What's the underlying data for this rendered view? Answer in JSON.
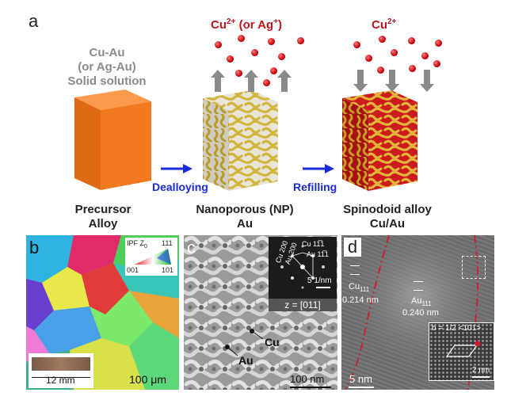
{
  "panel_a": {
    "letter": "a",
    "precursor_title": [
      "Cu-Au",
      "(or Ag-Au)",
      "Solid solution"
    ],
    "ion_left": {
      "base": "Cu",
      "sup": "2+",
      "rest": " (or Ag",
      "sup2": "+",
      "end": ")"
    },
    "ion_right": {
      "base": "Cu",
      "sup": "2+"
    },
    "step1": "Dealloying",
    "step2": "Refilling",
    "stage1": [
      "Precursor",
      "Alloy"
    ],
    "stage2": [
      "Nanoporous (NP)",
      "Au"
    ],
    "stage3": [
      "Spinodoid alloy",
      "Cu/Au"
    ],
    "colors": {
      "precursor": "#f47a22",
      "gold": "#d7b43a",
      "red": "#cc1b1b",
      "arrow_blue": "#1a2ad8"
    }
  },
  "panel_b": {
    "letter": "b",
    "ipf_label": "IPF Z",
    "ipf_sub": "0",
    "ipf_111": "111",
    "ipf_001": "001",
    "ipf_101": "101",
    "inset_scale": "12 mm",
    "scale": "100 μm"
  },
  "panel_c": {
    "letter": "c",
    "diff_labels": [
      "Cu 200",
      "Au 200",
      "Cu 11̅1",
      "Au 11̅1"
    ],
    "diff_scale": "5 1/nm",
    "zone": "z = [011]",
    "label_cu": "Cu",
    "label_au": "Au",
    "scale": "100 nm"
  },
  "panel_d": {
    "letter": "d",
    "cu_label": "Cu",
    "cu_sub": "111",
    "cu_d": "0.214 nm",
    "au_label": "Au",
    "au_sub": "111",
    "au_d": "0.240 nm",
    "burgers": "b = 1/2 <101>",
    "inset_scale": "2 nm",
    "scale": "5 nm"
  }
}
